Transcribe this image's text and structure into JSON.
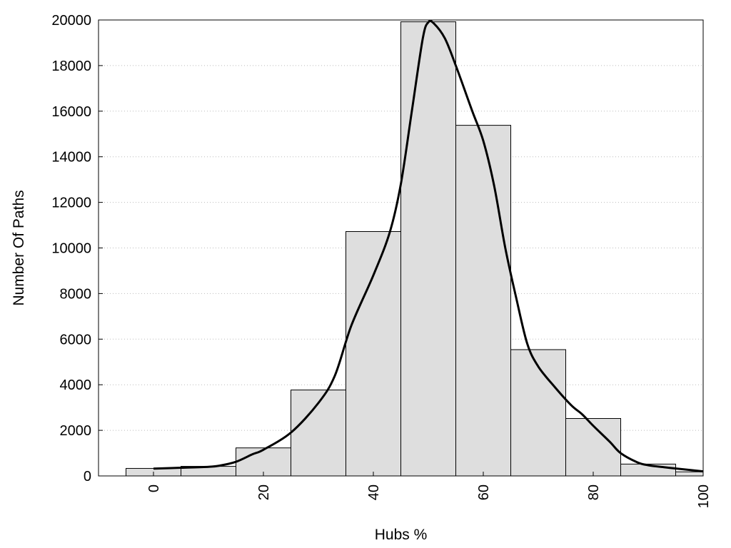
{
  "chart_data": {
    "type": "bar",
    "title": "",
    "xlabel": "Hubs %",
    "ylabel": "Number Of Paths",
    "xlim": [
      -10,
      100
    ],
    "ylim": [
      0,
      20000
    ],
    "grid": "horizontal dotted",
    "bin_width": 10,
    "bins": [
      {
        "center": 0,
        "value": 330
      },
      {
        "center": 10,
        "value": 420
      },
      {
        "center": 20,
        "value": 1230
      },
      {
        "center": 30,
        "value": 3770
      },
      {
        "center": 40,
        "value": 10720
      },
      {
        "center": 50,
        "value": 19920
      },
      {
        "center": 60,
        "value": 15380
      },
      {
        "center": 70,
        "value": 5540
      },
      {
        "center": 80,
        "value": 2520
      },
      {
        "center": 90,
        "value": 520
      },
      {
        "center": 100,
        "value": 180
      }
    ],
    "density_curve": {
      "name": "",
      "points": [
        [
          0,
          320
        ],
        [
          5,
          360
        ],
        [
          10,
          400
        ],
        [
          12,
          450
        ],
        [
          15,
          620
        ],
        [
          18,
          950
        ],
        [
          20,
          1150
        ],
        [
          25,
          1900
        ],
        [
          30,
          3200
        ],
        [
          33,
          4400
        ],
        [
          36,
          6600
        ],
        [
          40,
          8800
        ],
        [
          43,
          10700
        ],
        [
          45,
          12800
        ],
        [
          47,
          16000
        ],
        [
          49,
          19200
        ],
        [
          50,
          19900
        ],
        [
          51,
          19850
        ],
        [
          53,
          19200
        ],
        [
          55,
          18000
        ],
        [
          58,
          16000
        ],
        [
          60,
          14700
        ],
        [
          62,
          12700
        ],
        [
          64,
          10000
        ],
        [
          66,
          7800
        ],
        [
          68,
          5800
        ],
        [
          70,
          4800
        ],
        [
          73,
          3900
        ],
        [
          76,
          3100
        ],
        [
          78,
          2700
        ],
        [
          80,
          2200
        ],
        [
          83,
          1500
        ],
        [
          85,
          1000
        ],
        [
          88,
          600
        ],
        [
          90,
          470
        ],
        [
          93,
          380
        ],
        [
          96,
          300
        ],
        [
          100,
          200
        ]
      ]
    },
    "y_ticks": [
      "0",
      "2000",
      "4000",
      "6000",
      "8000",
      "10000",
      "12000",
      "14000",
      "16000",
      "18000",
      "20000"
    ],
    "x_ticks": [
      "0",
      "20",
      "40",
      "60",
      "80",
      "100"
    ],
    "colors": {
      "bar_fill": "#dedede",
      "bar_stroke": "#000000",
      "curve": "#000000",
      "grid": "#bbbbbb"
    }
  }
}
